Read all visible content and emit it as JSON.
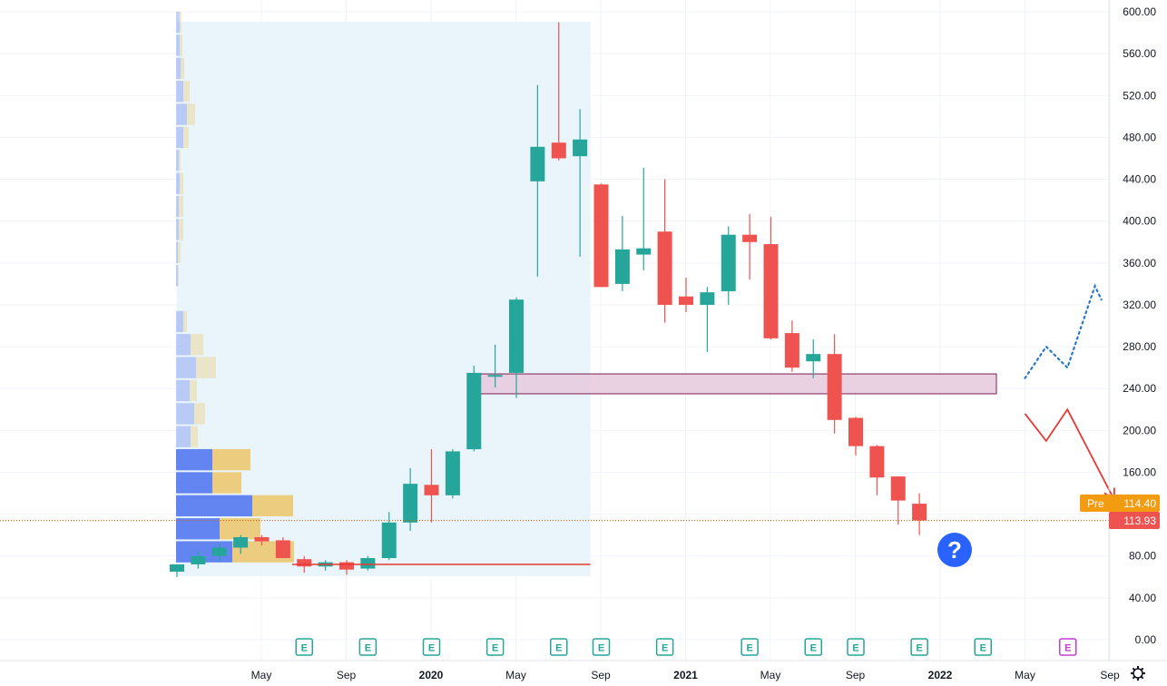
{
  "colors": {
    "up": "#26a69a",
    "down": "#ef5350",
    "grid": "#f0f3fa",
    "axis_text": "#131722",
    "volume_up": "#5b7ef0",
    "volume_down": "#ecc66a",
    "range_fill": "#eaf5fb",
    "zone_fill": "#e6c9dd",
    "zone_stroke": "#7a1f4f",
    "pre_label": "#f39c12",
    "price_label": "#ef5350",
    "earn_color": "#26a69a",
    "earn_future": "#c23bd4",
    "question_bg": "#2962ff",
    "projection_up": "#2979c8",
    "projection_down": "#e53935"
  },
  "chart_data": {
    "type": "candlestick",
    "timeframe": "monthly",
    "ylim": [
      -5,
      605
    ],
    "y_ticks": [
      0,
      40,
      80,
      120,
      160,
      200,
      240,
      280,
      320,
      360,
      400,
      440,
      480,
      520,
      560,
      600
    ],
    "y_tick_labels": [
      "0.00",
      "40.00",
      "80.00",
      "120.00",
      "160.00",
      "200.00",
      "240.00",
      "280.00",
      "320.00",
      "360.00",
      "400.00",
      "440.00",
      "480.00",
      "520.00",
      "560.00",
      "600.00"
    ],
    "x_ticks": [
      {
        "label": "May",
        "month": 4,
        "bold": false
      },
      {
        "label": "Sep",
        "month": 8,
        "bold": false
      },
      {
        "label": "2020",
        "month": 12,
        "bold": true
      },
      {
        "label": "May",
        "month": 16,
        "bold": false
      },
      {
        "label": "Sep",
        "month": 20,
        "bold": false
      },
      {
        "label": "2021",
        "month": 24,
        "bold": true
      },
      {
        "label": "May",
        "month": 28,
        "bold": false
      },
      {
        "label": "Sep",
        "month": 32,
        "bold": false
      },
      {
        "label": "2022",
        "month": 36,
        "bold": true
      },
      {
        "label": "May",
        "month": 40,
        "bold": false
      },
      {
        "label": "Sep",
        "month": 44,
        "bold": false
      }
    ],
    "candles": [
      {
        "o": 65,
        "h": 72,
        "l": 60,
        "c": 72
      },
      {
        "o": 72,
        "h": 85,
        "l": 68,
        "c": 80
      },
      {
        "o": 80,
        "h": 92,
        "l": 75,
        "c": 88
      },
      {
        "o": 88,
        "h": 100,
        "l": 82,
        "c": 98
      },
      {
        "o": 98,
        "h": 100,
        "l": 90,
        "c": 94
      },
      {
        "o": 95,
        "h": 98,
        "l": 78,
        "c": 78
      },
      {
        "o": 77,
        "h": 80,
        "l": 64,
        "c": 70
      },
      {
        "o": 70,
        "h": 76,
        "l": 66,
        "c": 74
      },
      {
        "o": 74,
        "h": 76,
        "l": 62,
        "c": 67
      },
      {
        "o": 68,
        "h": 80,
        "l": 66,
        "c": 78
      },
      {
        "o": 78,
        "h": 122,
        "l": 76,
        "c": 112
      },
      {
        "o": 112,
        "h": 164,
        "l": 104,
        "c": 149
      },
      {
        "o": 148,
        "h": 182,
        "l": 112,
        "c": 138
      },
      {
        "o": 138,
        "h": 182,
        "l": 135,
        "c": 180
      },
      {
        "o": 182,
        "h": 262,
        "l": 180,
        "c": 255
      },
      {
        "o": 252,
        "h": 282,
        "l": 241,
        "c": 253
      },
      {
        "o": 255,
        "h": 327,
        "l": 231,
        "c": 325
      },
      {
        "o": 438,
        "h": 530,
        "l": 347,
        "c": 471
      },
      {
        "o": 475,
        "h": 590,
        "l": 458,
        "c": 460
      },
      {
        "o": 462,
        "h": 507,
        "l": 366,
        "c": 478
      },
      {
        "o": 435,
        "h": 436,
        "l": 337,
        "c": 337
      },
      {
        "o": 340,
        "h": 405,
        "l": 333,
        "c": 373
      },
      {
        "o": 368,
        "h": 451,
        "l": 353,
        "c": 374
      },
      {
        "o": 390,
        "h": 440,
        "l": 303,
        "c": 320
      },
      {
        "o": 328,
        "h": 346,
        "l": 313,
        "c": 320
      },
      {
        "o": 320,
        "h": 337,
        "l": 275,
        "c": 332
      },
      {
        "o": 333,
        "h": 395,
        "l": 320,
        "c": 387
      },
      {
        "o": 387,
        "h": 407,
        "l": 344,
        "c": 380
      },
      {
        "o": 378,
        "h": 404,
        "l": 287,
        "c": 288
      },
      {
        "o": 293,
        "h": 305,
        "l": 256,
        "c": 260
      },
      {
        "o": 266,
        "h": 287,
        "l": 250,
        "c": 273
      },
      {
        "o": 273,
        "h": 292,
        "l": 197,
        "c": 210
      },
      {
        "o": 212,
        "h": 213,
        "l": 176,
        "c": 185
      },
      {
        "o": 185,
        "h": 186,
        "l": 138,
        "c": 155
      },
      {
        "o": 156,
        "h": 156,
        "l": 110,
        "c": 133
      },
      {
        "o": 130,
        "h": 140,
        "l": 100,
        "c": 114
      }
    ],
    "volume_profile": [
      {
        "price": 590,
        "up": 4,
        "down": 2
      },
      {
        "price": 568,
        "up": 4,
        "down": 3
      },
      {
        "price": 546,
        "up": 5,
        "down": 4
      },
      {
        "price": 524,
        "up": 8,
        "down": 7
      },
      {
        "price": 502,
        "up": 12,
        "down": 9
      },
      {
        "price": 480,
        "up": 8,
        "down": 6
      },
      {
        "price": 458,
        "up": 3,
        "down": 2
      },
      {
        "price": 436,
        "up": 4,
        "down": 4
      },
      {
        "price": 414,
        "up": 3,
        "down": 5
      },
      {
        "price": 392,
        "up": 3,
        "down": 5
      },
      {
        "price": 370,
        "up": 2,
        "down": 3
      },
      {
        "price": 348,
        "up": 2,
        "down": 1
      },
      {
        "price": 304,
        "up": 8,
        "down": 4
      },
      {
        "price": 282,
        "up": 16,
        "down": 14
      },
      {
        "price": 260,
        "up": 22,
        "down": 22
      },
      {
        "price": 238,
        "up": 15,
        "down": 8
      },
      {
        "price": 216,
        "up": 20,
        "down": 12
      },
      {
        "price": 194,
        "up": 16,
        "down": 8
      },
      {
        "price": 172,
        "up": 40,
        "down": 42
      },
      {
        "price": 150,
        "up": 40,
        "down": 32
      },
      {
        "price": 128,
        "up": 84,
        "down": 45
      },
      {
        "price": 106,
        "up": 48,
        "down": 45
      },
      {
        "price": 84,
        "up": 62,
        "down": 68
      }
    ],
    "zone": {
      "low": 235,
      "high": 254
    },
    "range_highlight": {
      "low": 60,
      "high": 590
    },
    "red_hline": 72,
    "current_price": 113.93,
    "pre_price": 114.4,
    "projection_up": [
      [
        40.0,
        250
      ],
      [
        41.0,
        280
      ],
      [
        42.0,
        260
      ],
      [
        43.3,
        338
      ],
      [
        43.6,
        325
      ]
    ],
    "projection_down": [
      [
        40.0,
        216
      ],
      [
        41.0,
        190
      ],
      [
        42.0,
        220
      ],
      [
        44.2,
        134
      ]
    ],
    "earnings": [
      {
        "month": 6,
        "future": false
      },
      {
        "month": 9,
        "future": false
      },
      {
        "month": 12,
        "future": false
      },
      {
        "month": 15,
        "future": false
      },
      {
        "month": 18,
        "future": false
      },
      {
        "month": 20,
        "future": false
      },
      {
        "month": 23,
        "future": false
      },
      {
        "month": 27,
        "future": false
      },
      {
        "month": 30,
        "future": false
      },
      {
        "month": 32,
        "future": false
      },
      {
        "month": 35,
        "future": false
      },
      {
        "month": 38,
        "future": false
      },
      {
        "month": 42,
        "future": true
      }
    ]
  },
  "labels": {
    "pre": "Pre",
    "pre_price": "114.40",
    "current_price": "113.93",
    "earnings_letter": "E",
    "question": "?"
  }
}
